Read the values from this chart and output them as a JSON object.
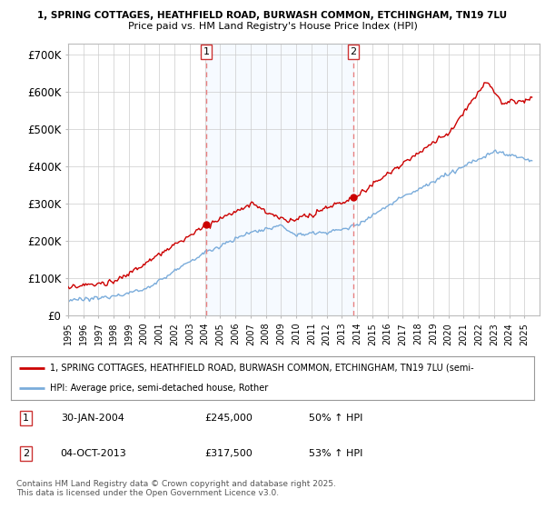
{
  "title1": "1, SPRING COTTAGES, HEATHFIELD ROAD, BURWASH COMMON, ETCHINGHAM, TN19 7LU",
  "title2": "Price paid vs. HM Land Registry's House Price Index (HPI)",
  "ylabel_ticks": [
    "£0",
    "£100K",
    "£200K",
    "£300K",
    "£400K",
    "£500K",
    "£600K",
    "£700K"
  ],
  "ytick_values": [
    0,
    100000,
    200000,
    300000,
    400000,
    500000,
    600000,
    700000
  ],
  "ylim": [
    0,
    730000
  ],
  "sale1_date": 2004.08,
  "sale1_price": 245000,
  "sale2_date": 2013.75,
  "sale2_price": 317500,
  "line_color_property": "#cc0000",
  "line_color_hpi": "#7aacdb",
  "vline_color": "#e88080",
  "shade_color": "#ddeeff",
  "legend_label1": "1, SPRING COTTAGES, HEATHFIELD ROAD, BURWASH COMMON, ETCHINGHAM, TN19 7LU (semi-",
  "legend_label2": "HPI: Average price, semi-detached house, Rother",
  "footer": "Contains HM Land Registry data © Crown copyright and database right 2025.\nThis data is licensed under the Open Government Licence v3.0.",
  "xmin": 1995,
  "xmax": 2026,
  "background_color": "#ffffff",
  "grid_color": "#cccccc"
}
